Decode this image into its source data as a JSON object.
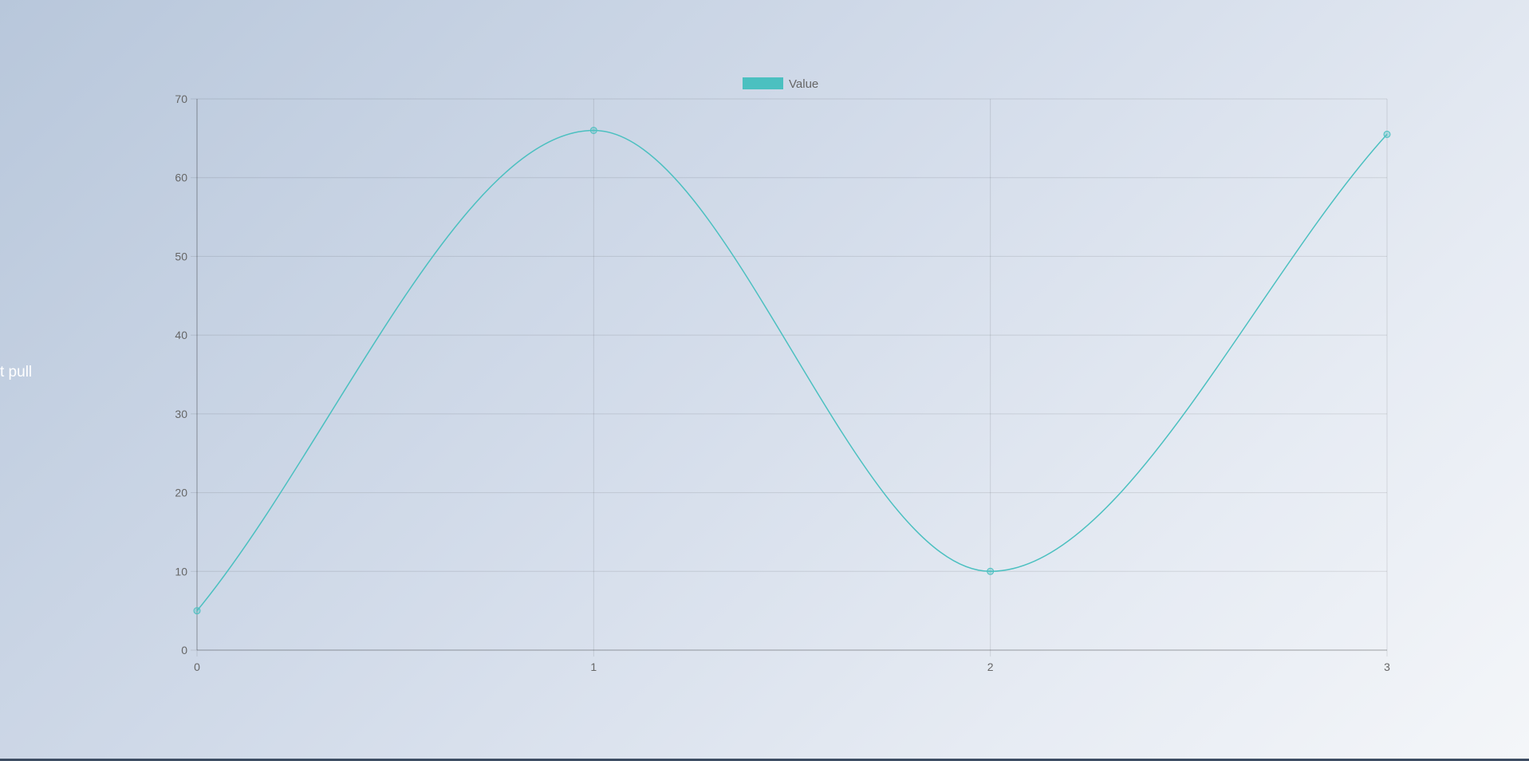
{
  "side_text": "t pull",
  "chart_data": {
    "type": "line",
    "x": [
      0,
      1,
      2,
      3
    ],
    "series": [
      {
        "name": "Value",
        "values": [
          5,
          66,
          10,
          65.5
        ],
        "color": "#4bc0c0"
      }
    ],
    "xlim": [
      0,
      3
    ],
    "ylim": [
      0,
      70
    ],
    "y_ticks": [
      0,
      10,
      20,
      30,
      40,
      50,
      60,
      70
    ],
    "x_ticks": [
      0,
      1,
      2,
      3
    ],
    "grid": true,
    "legend": "top-center",
    "curve": "smooth"
  }
}
